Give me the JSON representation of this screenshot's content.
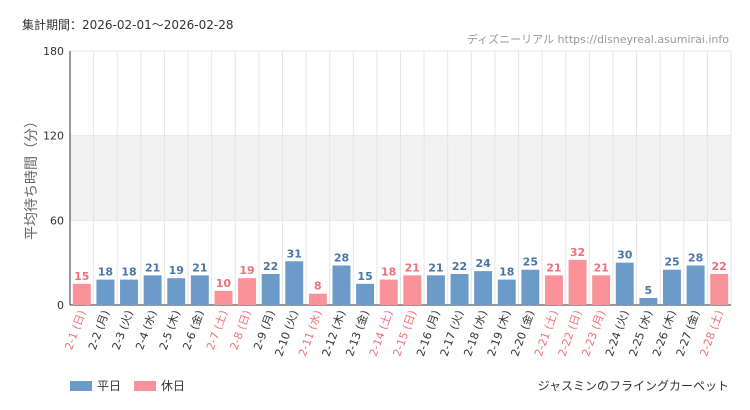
{
  "header": {
    "period_label": "集計期間：2026-02-01〜2026-02-28",
    "source": "ディズニーリアル https://disneyreal.asumirai.info"
  },
  "footer": {
    "attraction": "ジャスミンのフライングカーペット"
  },
  "chart_data": {
    "type": "bar",
    "title": "",
    "xlabel": "",
    "ylabel": "平均待ち時間（分）",
    "ylim": [
      0,
      180
    ],
    "yticks": [
      0,
      60,
      120,
      180
    ],
    "highlight_band": [
      60,
      120
    ],
    "grid": true,
    "legend": [
      {
        "name": "平日",
        "color": "#6c9bc9"
      },
      {
        "name": "休日",
        "color": "#f99399"
      }
    ],
    "legend_position": "bottom-left",
    "categories": [
      "2-1 (日)",
      "2-2 (月)",
      "2-3 (火)",
      "2-4 (水)",
      "2-5 (木)",
      "2-6 (金)",
      "2-7 (土)",
      "2-8 (日)",
      "2-9 (月)",
      "2-10 (火)",
      "2-11 (水)",
      "2-12 (木)",
      "2-13 (金)",
      "2-14 (土)",
      "2-15 (日)",
      "2-16 (月)",
      "2-17 (火)",
      "2-18 (水)",
      "2-19 (木)",
      "2-20 (金)",
      "2-21 (土)",
      "2-22 (日)",
      "2-23 (月)",
      "2-24 (火)",
      "2-25 (水)",
      "2-26 (木)",
      "2-27 (金)",
      "2-28 (土)"
    ],
    "values": [
      15,
      18,
      18,
      21,
      19,
      21,
      10,
      19,
      22,
      31,
      8,
      28,
      15,
      18,
      21,
      21,
      22,
      24,
      18,
      25,
      21,
      32,
      21,
      30,
      5,
      25,
      28,
      22
    ],
    "holiday": [
      true,
      false,
      false,
      false,
      false,
      false,
      true,
      true,
      false,
      false,
      true,
      false,
      false,
      true,
      true,
      false,
      false,
      false,
      false,
      false,
      true,
      true,
      true,
      false,
      false,
      false,
      false,
      true
    ],
    "colors": {
      "weekday": "#6c9bc9",
      "holiday": "#f99399",
      "weekday_label": "#4a76a8",
      "holiday_label": "#ef6f7a"
    }
  }
}
